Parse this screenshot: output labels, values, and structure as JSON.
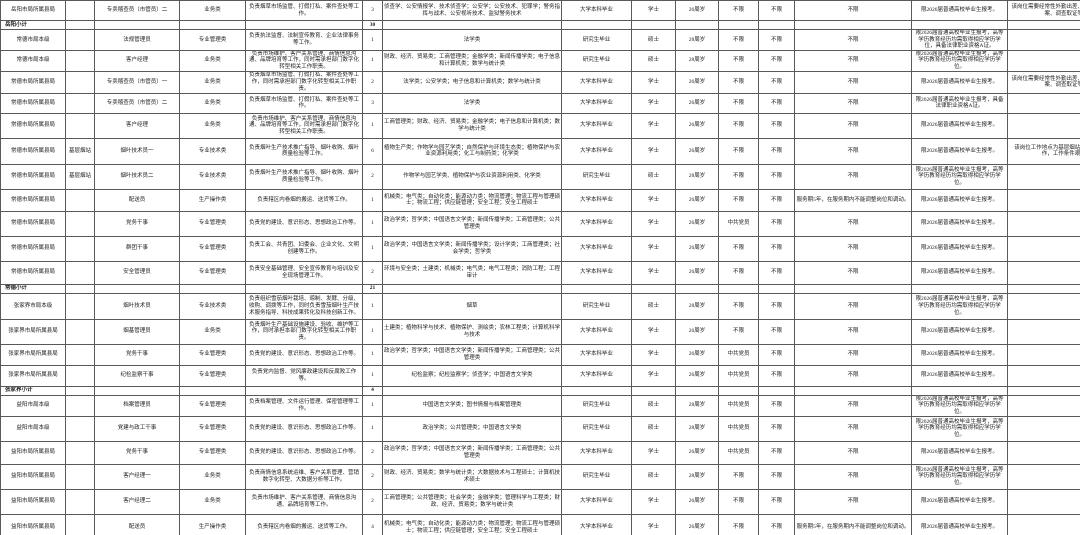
{
  "table": {
    "rows": [
      {
        "subtotal": false,
        "cells": [
          "岳阳市局所属县局",
          "",
          "专卖稽查员（市管员）二",
          "业务类",
          "负责烟草市场监管、打假打私、案件查处等工作。",
          "3",
          "侦查学、公安情报学、技术侦查学；公安学；公安技术、犯罪学；警务指挥与战术、公安视听技术、监狱警务技术",
          "大学本科毕业",
          "学士",
          "26周岁",
          "不限",
          "不限",
          "不限",
          "限2026届普通高校毕业生报考。",
          "该岗位需要经常性外勤出差、夜间外出稽查办案、调查取证等。"
        ]
      },
      {
        "subtotal": true,
        "cells": [
          "岳阳小计",
          "",
          "",
          "",
          "",
          "30",
          "",
          "",
          "",
          "",
          "",
          "",
          "",
          "",
          ""
        ]
      },
      {
        "subtotal": false,
        "cells": [
          "常德市局本级",
          "",
          "法规管理员",
          "专业管理类",
          "负责执法监督、法制宣传教育、企业法律事务等工作。",
          "1",
          "法学类",
          "研究生毕业",
          "硕士",
          "28周岁",
          "不限",
          "不限",
          "不限",
          "限2026届普通高校毕业生报考，高等学历教育经历均需取得相应学历学位，具备法律职业资格A证。",
          ""
        ]
      },
      {
        "subtotal": false,
        "cells": [
          "常德市局本级",
          "",
          "客户经理",
          "业务类",
          "负责市场维护、客户关系管理、商情信息沟通、品牌培育等工作，同时需承担部门数字化转型相关工作职责。",
          "1",
          "财政、经济、贸易类；工商管理类；金融学类；新闻传播学类；电子信息和计算机类；数学与统计类",
          "研究生毕业",
          "硕士",
          "28周岁",
          "不限",
          "不限",
          "不限",
          "限2026届普通高校毕业生报考，高等学历教育经历均需取得相应学历学位。",
          ""
        ]
      },
      {
        "subtotal": false,
        "cells": [
          "常德市局所属县局",
          "",
          "专卖稽查员（市管员）一",
          "业务类",
          "负责烟草市场监管、打假打私、案件查处等工作，同时需承担部门数字化转型相关工作职责。",
          "2",
          "法学类；公安学类；电子信息和计算机类；数学与统计类",
          "大学本科毕业",
          "学士",
          "26周岁",
          "不限",
          "不限",
          "不限",
          "限2026届普通高校毕业生报考。",
          "该岗位需要经常性外勤出差、夜间外出稽查办案、调查取证等。"
        ]
      },
      {
        "subtotal": false,
        "cells": [
          "常德市局所属县局",
          "",
          "专卖稽查员（市管员）二",
          "业务类",
          "负责烟草市场监管、打假打私、案件查处等工作。",
          "3",
          "法学类",
          "大学本科毕业",
          "学士",
          "26周岁",
          "不限",
          "不限",
          "不限",
          "限2026届普通高校毕业生报考，具备法律职业资格A证。",
          ""
        ]
      },
      {
        "subtotal": false,
        "cells": [
          "常德市局所属县局",
          "",
          "客户经理",
          "业务类",
          "负责市场维护、客户关系管理、商情信息沟通、品牌培育等工作，同时需承担部门数字化转型相关工作职责。",
          "1",
          "工商管理类；财政、经济、贸易类；金融学类；电子信息和计算机类；数学与统计类",
          "大学本科毕业",
          "学士",
          "26周岁",
          "不限",
          "不限",
          "不限",
          "限2026届普通高校毕业生报考。",
          ""
        ]
      },
      {
        "subtotal": false,
        "cells": [
          "常德市局所属县局",
          "基层烟站",
          "烟叶技术员一",
          "专业技术类",
          "负责烟叶生产技术推广指导、烟叶收购、烟叶质量检验等工作。",
          "6",
          "植物生产类；作物学与园艺学类；自然保护与环境生态类；植物保护与农业资源利用类；化工与制药类；化学类",
          "大学本科毕业",
          "学士",
          "26周岁",
          "不限",
          "不限",
          "不限",
          "限2026届普通高校毕业生报考。",
          "该岗位工作地点为基层烟站，需常年驻站工作，工作条件艰苦。"
        ]
      },
      {
        "subtotal": false,
        "cells": [
          "常德市局所属县局",
          "基层烟站",
          "烟叶技术员二",
          "专业技术类",
          "负责烟叶生产技术推广指导、烟叶收购、烟叶质量检验等工作。",
          "2",
          "作物学与园艺学类、植物保护与农业资源利用类、化学类",
          "研究生毕业",
          "硕士",
          "28周岁",
          "不限",
          "不限",
          "不限",
          "限2026届普通高校毕业生报考，高等学历教育经历均需取得相应学历学位。",
          ""
        ]
      },
      {
        "subtotal": false,
        "cells": [
          "常德市局所属县局",
          "",
          "配送员",
          "生产操作类",
          "负责辖区内卷烟的搬运、送货等工作。",
          "1",
          "机械类；电气类；自动化类；能源动力类；物流管理；物流工程与管理硕士；物流工程；供应链管理；安全工程；安全工程硕士",
          "大学本科毕业",
          "学士",
          "26周岁",
          "不限",
          "不限",
          "服务期5年，在服务期内不能调整岗位和调动。",
          "限2026届普通高校毕业生报考。",
          ""
        ]
      },
      {
        "subtotal": false,
        "cells": [
          "常德市局所属县局",
          "",
          "党务干事",
          "专业管理类",
          "负责党的建设、意识形态、思想政治工作等。",
          "1",
          "政治学类；哲学类；中国语言文学类；新闻传播学类；工商管理类；公共管理类",
          "大学本科毕业",
          "学士",
          "26周岁",
          "中共党员",
          "不限",
          "不限",
          "限2026届普通高校毕业生报考。",
          ""
        ]
      },
      {
        "subtotal": false,
        "cells": [
          "常德市局所属县局",
          "",
          "群团干事",
          "专业管理类",
          "负责工会、共青团、妇委会、企业文化、文明创建等工作。",
          "1",
          "政治学类；中国语言文学类；新闻传播学类；设计学类；工商管理类；社会学类；哲学类",
          "大学本科毕业",
          "学士",
          "26周岁",
          "不限",
          "不限",
          "不限",
          "限2026届普通高校毕业生报考。",
          ""
        ]
      },
      {
        "subtotal": false,
        "cells": [
          "常德市局所属县局",
          "",
          "安全管理员",
          "专业管理类",
          "负责安全基础管理、安全宣传教育与培训及安全现场管理工作。",
          "2",
          "环境与安全类；土建类；机械类；电气类；电气工程类；消防工程；工程审计",
          "大学本科毕业",
          "学士",
          "26周岁",
          "不限",
          "不限",
          "不限",
          "限2026届普通高校毕业生报考。",
          ""
        ]
      },
      {
        "subtotal": true,
        "cells": [
          "常德小计",
          "",
          "",
          "",
          "",
          "21",
          "",
          "",
          "",
          "",
          "",
          "",
          "",
          "",
          ""
        ]
      },
      {
        "subtotal": false,
        "cells": [
          "张家界市局本级",
          "",
          "烟叶技术员",
          "专业技术类",
          "负责组织雪茄烟叶栽培、晾制、发酵、分级、收购、调拨等工作，同时负责雪茄烟叶生产技术服务指导、科技成果转化及科技创新工作。",
          "1",
          "烟草",
          "研究生毕业",
          "硕士",
          "28周岁",
          "不限",
          "不限",
          "不限",
          "限2026届普通高校毕业生报考，高等学历教育经历均需取得相应学历学位。",
          ""
        ]
      },
      {
        "subtotal": false,
        "cells": [
          "张家界市局所属县局",
          "",
          "烟基管理员",
          "业务类",
          "负责烟叶生产基础设施建设、验收、维护等工作，同时承担本部门数字化转型相关工作职责。",
          "1",
          "土建类；植物科学与技术、植物保护、测绘类；农林工程类；计算机科学与技术",
          "大学本科毕业",
          "学士",
          "26周岁",
          "不限",
          "不限",
          "不限",
          "限2026届普通高校毕业生报考。",
          ""
        ]
      },
      {
        "subtotal": false,
        "cells": [
          "张家界市局所属县局",
          "",
          "党务干事",
          "专业管理类",
          "负责党的建设、意识形态、思想政治工作等。",
          "1",
          "政治学类；哲学类；中国语言文学类；新闻传播学类；工商管理类；公共管理类",
          "大学本科毕业",
          "学士",
          "26周岁",
          "中共党员",
          "不限",
          "不限",
          "限2026届普通高校毕业生报考。",
          ""
        ]
      },
      {
        "subtotal": false,
        "cells": [
          "张家界市局所属县局",
          "",
          "纪检监察干事",
          "专业管理类",
          "负责党内监督、党风廉政建设和反腐败工作等。",
          "1",
          "纪检监察；纪检监察学；侦查学；中国语言文学类",
          "大学本科毕业",
          "学士",
          "26周岁",
          "中共党员",
          "不限",
          "不限",
          "限2026届普通高校毕业生报考。",
          ""
        ]
      },
      {
        "subtotal": true,
        "cells": [
          "张家界小计",
          "",
          "",
          "",
          "",
          "4",
          "",
          "",
          "",
          "",
          "",
          "",
          "",
          "",
          ""
        ]
      },
      {
        "subtotal": false,
        "cells": [
          "益阳市局本级",
          "",
          "档案管理员",
          "专业管理类",
          "负责档案管理、文件运行管理、保密管理等工作。",
          "1",
          "中国语言文学类；图书情报与档案管理类",
          "研究生毕业",
          "硕士",
          "28周岁",
          "中共党员",
          "不限",
          "不限",
          "限2026届普通高校毕业生报考，高等学历教育经历均需取得相应学历学位。",
          ""
        ]
      },
      {
        "subtotal": false,
        "cells": [
          "益阳市局本级",
          "",
          "党建与政工干事",
          "专业管理类",
          "负责党的建设、意识形态、思想政治工作等。",
          "1",
          "政治学类；公共管理类；中国语言文学类",
          "研究生毕业",
          "硕士",
          "28周岁",
          "中共党员",
          "不限",
          "不限",
          "限2026届普通高校毕业生报考，高等学历教育经历均需取得相应学历学位。",
          ""
        ]
      },
      {
        "subtotal": false,
        "cells": [
          "益阳市局所属县局",
          "",
          "党务干事",
          "专业管理类",
          "负责党的建设、意识形态、思想政治工作等。",
          "2",
          "政治学类；哲学类；中国语言文学类；新闻传播学类；工商管理类；公共管理类",
          "大学本科毕业",
          "学士",
          "26周岁",
          "中共党员",
          "不限",
          "不限",
          "限2026届普通高校毕业生报考。",
          ""
        ]
      },
      {
        "subtotal": false,
        "cells": [
          "益阳市局所属县局",
          "",
          "客户经理一",
          "业务类",
          "负责商情信息系统运维、客户关系管理、营销数字化转型、大数据分析等工作。",
          "2",
          "财政、经济、贸易类；数学与统计类；大数据技术与工程硕士；计算机技术硕士",
          "研究生毕业",
          "硕士",
          "28周岁",
          "不限",
          "不限",
          "不限",
          "限2026届普通高校毕业生报考，高等学历教育经历均需取得相应学历学位。",
          ""
        ]
      },
      {
        "subtotal": false,
        "cells": [
          "益阳市局所属县局",
          "",
          "客户经理二",
          "业务类",
          "负责市场维护、客户关系管理、商情信息沟通、品牌培育等工作。",
          "2",
          "工商管理类；公共管理类；社会学类；金融学类；管理科学与工程类；财政、经济、贸易类；数学与统计类",
          "大学本科毕业",
          "学士",
          "26周岁",
          "不限",
          "不限",
          "不限",
          "限2026届普通高校毕业生报考。",
          ""
        ]
      },
      {
        "subtotal": false,
        "cells": [
          "益阳市局所属县局",
          "",
          "配送员",
          "生产操作类",
          "负责辖区内卷烟的搬运、送货等工作。",
          "4",
          "机械类；电气类；自动化类；能源动力类；物流管理；物流工程与管理硕士；物流工程；供应链管理；安全工程；安全工程硕士",
          "大学本科毕业",
          "学士",
          "26周岁",
          "不限",
          "不限",
          "服务期5年，在服务期内不能调整岗位和调动。",
          "限2026届普通高校毕业生报考。",
          ""
        ]
      }
    ]
  }
}
